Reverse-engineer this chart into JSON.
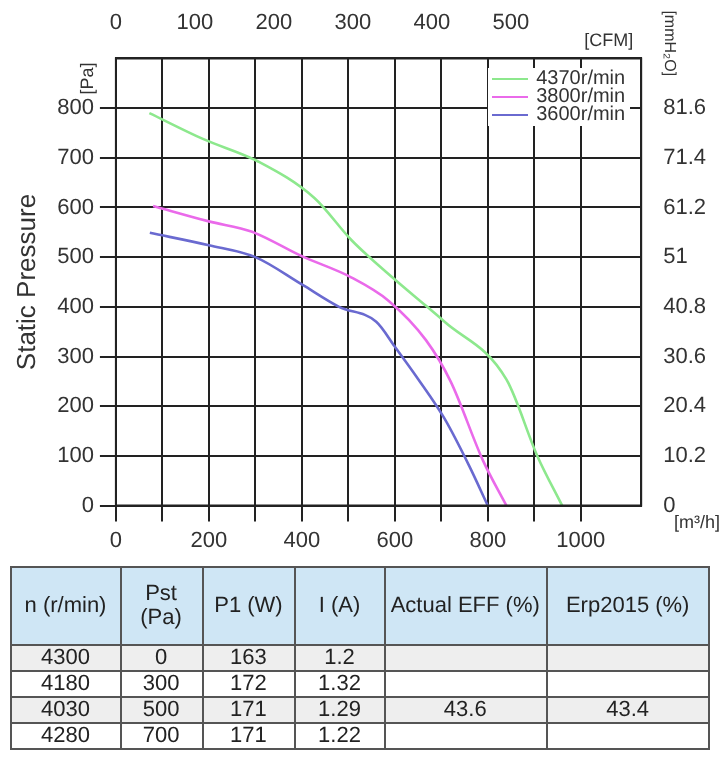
{
  "chart_data": [
    {
      "type": "line",
      "ylabel": "Static Pressure",
      "xlabel": "[m³/h]",
      "x2label": "[CFM]",
      "y2label": "[mmH₂O]",
      "annotations": [
        "[Pa]"
      ],
      "xlim": [
        0,
        1130
      ],
      "xticks": [
        0,
        {
          "value": 100,
          "label": null
        },
        200,
        {
          "value": 300,
          "label": null
        },
        400,
        {
          "value": 500,
          "label": null
        },
        600,
        {
          "value": 700,
          "label": null
        },
        800,
        {
          "value": 900,
          "label": null
        },
        1000
      ],
      "x2lim": [
        0,
        665
      ],
      "x2ticks": [
        0,
        100,
        200,
        300,
        400,
        500
      ],
      "ylim": [
        0,
        900
      ],
      "yticks": [
        0,
        100,
        200,
        300,
        400,
        500,
        600,
        700,
        800
      ],
      "y2lim": [
        0,
        91.8
      ],
      "y2ticks": [
        0,
        10.2,
        20.4,
        30.6,
        40.8,
        51,
        61.2,
        71.4,
        81.6
      ],
      "grid": true,
      "legend": "top right",
      "marker": "none",
      "line_style": "solid",
      "series": [
        {
          "name": "4370r/min",
          "color": "#8de88d",
          "x": [
            72,
            187,
            307,
            427,
            507,
            600,
            667,
            707,
            840,
            907,
            960
          ],
          "values": [
            790,
            738,
            692,
            619,
            534,
            455,
            402,
            370,
            254,
            99,
            0
          ]
        },
        {
          "name": "3800r/min",
          "color": "#ea6aea",
          "x": [
            80,
            200,
            293,
            400,
            507,
            587,
            667,
            720,
            790,
            840
          ],
          "values": [
            603,
            572,
            551,
            502,
            459,
            412,
            333,
            250,
            90,
            0
          ]
        },
        {
          "name": "3600r/min",
          "color": "#6a6ad0",
          "x": [
            73,
            200,
            300,
            400,
            480,
            560,
            600,
            650,
            707,
            760,
            800
          ],
          "values": [
            549,
            524,
            500,
            445,
            400,
            370,
            320,
            255,
            175,
            80,
            0
          ]
        }
      ]
    },
    {
      "type": "other",
      "categories": [
        "n (r/min)",
        "Pst (Pa)",
        "P1 (W)",
        "I (A)",
        "Actual EFF (%)",
        "Erp2015 (%)"
      ],
      "cell_labels": [
        [
          "4300",
          "0",
          "163",
          "1.2",
          null,
          null
        ],
        [
          "4180",
          "300",
          "172",
          "1.32",
          null,
          null
        ],
        [
          "4030",
          "500",
          "171",
          "1.29",
          "43.6",
          "43.4"
        ],
        [
          "4280",
          "700",
          "171",
          "1.22",
          null,
          null
        ]
      ]
    }
  ]
}
